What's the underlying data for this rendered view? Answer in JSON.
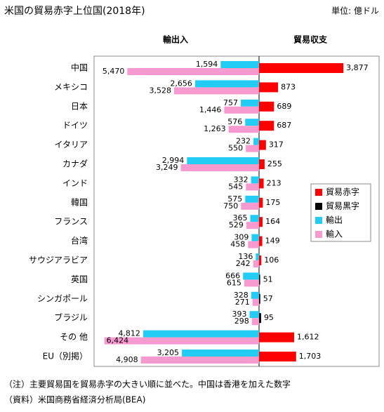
{
  "chart_data": {
    "type": "butterfly-bar",
    "title": "米国の貿易赤字上位国(2018年)",
    "unit": "単位: 億ドル",
    "left_header": "輸出入",
    "right_header": "貿易収支",
    "categories": [
      "中国",
      "メキシコ",
      "日本",
      "ドイツ",
      "イタリア",
      "カナダ",
      "インド",
      "韓国",
      "フランス",
      "台湾",
      "サウジアラビア",
      "英国",
      "シンガポール",
      "ブラジル",
      "その 他",
      "EU（別掲）"
    ],
    "series": [
      {
        "name": "貿易赤字",
        "color": "#ff0000",
        "side": "right",
        "values": [
          3877,
          873,
          689,
          687,
          317,
          255,
          213,
          175,
          164,
          149,
          106,
          null,
          null,
          null,
          1612,
          1703
        ],
        "value_labels": [
          "3,877",
          "873",
          "689",
          "687",
          "317",
          "255",
          "213",
          "175",
          "164",
          "149",
          "106",
          null,
          null,
          null,
          "1,612",
          "1,703"
        ]
      },
      {
        "name": "貿易黒字",
        "color": "#000000",
        "side": "right",
        "values": [
          null,
          null,
          null,
          null,
          null,
          null,
          null,
          null,
          null,
          null,
          null,
          51,
          57,
          95,
          null,
          null
        ]
      },
      {
        "name": "輸出",
        "color": "#22ccf5",
        "side": "left",
        "values": [
          1594,
          2656,
          757,
          576,
          232,
          2994,
          332,
          575,
          365,
          309,
          136,
          666,
          328,
          393,
          4812,
          3205
        ],
        "value_labels": [
          "1,594",
          "2,656",
          "757",
          "576",
          "232",
          "2,994",
          "332",
          "575",
          "365",
          "309",
          "136",
          "666",
          "328",
          "393",
          "4,812",
          "3,205"
        ]
      },
      {
        "name": "輸入",
        "color": "#f79ad0",
        "side": "left",
        "values": [
          5470,
          3528,
          1446,
          1263,
          550,
          3249,
          545,
          750,
          529,
          458,
          242,
          615,
          271,
          298,
          6424,
          4908
        ],
        "value_labels": [
          "5,470",
          "3,528",
          "1,446",
          "1,263",
          "550",
          "3,249",
          "545",
          "750",
          "529",
          "458",
          "242",
          "615",
          "271",
          "298",
          "6,424",
          "4,908"
        ]
      }
    ],
    "notes": [
      "（注）主要貿易国を貿易赤字の大きい順に並べた。中国は香港を加えた数字",
      "（資料）米国商務省経済分析局(BEA)"
    ]
  }
}
